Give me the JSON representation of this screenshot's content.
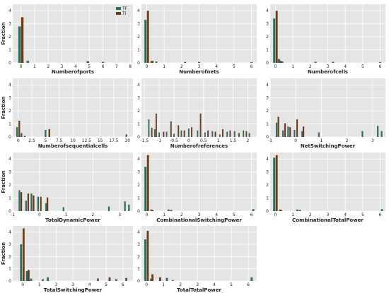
{
  "colors": {
    "TF": "#2f6b5e",
    "TI": "#6b3c1e",
    "background": "#e5e5e5",
    "grid": "#ffffff"
  },
  "legend": {
    "placement": "top-right of first panel",
    "entries": [
      "TF",
      "TI"
    ]
  },
  "chart_data": [
    {
      "type": "bar",
      "title": "",
      "xlabel": "Numberofports",
      "ylabel": "Fraction",
      "xlim": [
        -0.6,
        8.2
      ],
      "ylim": [
        0,
        4.5
      ],
      "xticks": [
        0,
        1,
        2,
        3,
        4,
        5,
        6,
        7,
        8
      ],
      "yticks": [
        0,
        1,
        2,
        3,
        4
      ],
      "bar_width": 0.18,
      "series": [
        {
          "name": "TF",
          "points": [
            [
              -0.1,
              2.8
            ],
            [
              0.5,
              0.15
            ],
            [
              6,
              0.08
            ]
          ]
        },
        {
          "name": "TI",
          "points": [
            [
              0.1,
              3.5
            ],
            [
              4.9,
              0.12
            ]
          ]
        }
      ]
    },
    {
      "type": "bar",
      "title": "",
      "xlabel": "Numberofnets",
      "ylabel": "",
      "xlim": [
        -0.3,
        6.3
      ],
      "ylim": [
        0,
        4.5
      ],
      "xticks": [
        0,
        1,
        2,
        3,
        4,
        5,
        6
      ],
      "yticks": [
        0,
        1,
        2,
        3,
        4
      ],
      "bar_width": 0.12,
      "series": [
        {
          "name": "TF",
          "points": [
            [
              -0.07,
              3.3
            ],
            [
              0.27,
              0.12
            ],
            [
              0.55,
              0.1
            ],
            [
              2.2,
              0.07
            ],
            [
              3.0,
              0.07
            ],
            [
              6.0,
              0.06
            ]
          ]
        },
        {
          "name": "TI",
          "points": [
            [
              0.07,
              4.0
            ],
            [
              0.33,
              0.15
            ]
          ]
        }
      ]
    },
    {
      "type": "bar",
      "title": "",
      "xlabel": "Numberofcells",
      "ylabel": "",
      "xlim": [
        -0.3,
        6.3
      ],
      "ylim": [
        0,
        4.5
      ],
      "xticks": [
        0,
        1,
        2,
        3,
        4,
        5,
        6
      ],
      "yticks": [
        0,
        1,
        2,
        3,
        4
      ],
      "bar_width": 0.12,
      "series": [
        {
          "name": "TF",
          "points": [
            [
              -0.07,
              3.4
            ],
            [
              0.2,
              0.3
            ],
            [
              0.4,
              0.1
            ],
            [
              2.3,
              0.08
            ],
            [
              3.3,
              0.08
            ],
            [
              6.0,
              0.06
            ]
          ]
        },
        {
          "name": "TI",
          "points": [
            [
              0.07,
              4.0
            ],
            [
              0.3,
              0.15
            ]
          ]
        }
      ]
    },
    {
      "type": "bar",
      "title": "",
      "xlabel": "Numberofsequentialcells",
      "ylabel": "Fraction",
      "xlim": [
        -1,
        21
      ],
      "ylim": [
        0,
        4.5
      ],
      "xticks": [
        0.0,
        2.5,
        5.0,
        7.5,
        10.0,
        12.5,
        15.0,
        17.5,
        20.0
      ],
      "yticks": [
        0,
        1,
        2,
        3,
        4
      ],
      "bar_width": 0.3,
      "series": [
        {
          "name": "TF",
          "points": [
            [
              -0.2,
              0.75
            ],
            [
              0.6,
              0.3
            ],
            [
              5.0,
              0.55
            ],
            [
              19.8,
              0.2
            ]
          ]
        },
        {
          "name": "TI",
          "points": [
            [
              0.2,
              1.25
            ],
            [
              1.2,
              0.08
            ],
            [
              5.7,
              0.6
            ]
          ]
        }
      ]
    },
    {
      "type": "bar",
      "title": "",
      "xlabel": "Numberofreferences",
      "ylabel": "",
      "xlim": [
        -1.6,
        2.3
      ],
      "ylim": [
        0,
        4.5
      ],
      "xticks": [
        -1.5,
        -1.0,
        -0.5,
        0.0,
        0.5,
        1.0,
        1.5,
        2.0
      ],
      "yticks": [
        0,
        1,
        2,
        3,
        4
      ],
      "bar_width": 0.045,
      "series": [
        {
          "name": "TF",
          "points": [
            [
              -1.35,
              1.35
            ],
            [
              -1.15,
              0.6
            ],
            [
              -1.0,
              0.35
            ],
            [
              -0.75,
              0.4
            ],
            [
              -0.5,
              0.25
            ],
            [
              -0.25,
              0.5
            ],
            [
              0.0,
              0.65
            ],
            [
              0.3,
              0.5
            ],
            [
              0.55,
              0.35
            ],
            [
              0.8,
              0.45
            ],
            [
              1.05,
              0.2
            ],
            [
              1.3,
              0.4
            ],
            [
              1.55,
              0.45
            ],
            [
              1.85,
              0.5
            ],
            [
              2.05,
              0.3
            ]
          ]
        },
        {
          "name": "TI",
          "points": [
            [
              -1.25,
              0.7
            ],
            [
              -1.1,
              1.8
            ],
            [
              -0.85,
              0.4
            ],
            [
              -0.6,
              1.2
            ],
            [
              -0.35,
              0.9
            ],
            [
              -0.15,
              0.5
            ],
            [
              0.1,
              0.75
            ],
            [
              0.4,
              1.8
            ],
            [
              0.65,
              0.5
            ],
            [
              0.9,
              0.4
            ],
            [
              1.15,
              0.6
            ],
            [
              1.4,
              0.5
            ],
            [
              1.7,
              0.3
            ],
            [
              1.95,
              0.45
            ]
          ]
        }
      ]
    },
    {
      "type": "bar",
      "title": "",
      "xlabel": "NetSwitchingPower",
      "ylabel": "",
      "xlim": [
        -1,
        3.5
      ],
      "ylim": [
        0,
        4.5
      ],
      "xticks": [
        -1,
        0,
        1,
        2,
        3
      ],
      "yticks": [
        0,
        1,
        2,
        3,
        4
      ],
      "bar_width": 0.06,
      "series": [
        {
          "name": "TF",
          "points": [
            [
              -0.75,
              1.1
            ],
            [
              -0.5,
              0.5
            ],
            [
              -0.3,
              0.8
            ],
            [
              -0.05,
              0.55
            ],
            [
              0.25,
              0.45
            ],
            [
              0.9,
              0.35
            ],
            [
              2.6,
              0.45
            ],
            [
              3.2,
              0.85
            ],
            [
              3.35,
              0.45
            ]
          ]
        },
        {
          "name": "TI",
          "points": [
            [
              -0.68,
              1.55
            ],
            [
              -0.42,
              1.05
            ],
            [
              -0.22,
              0.75
            ],
            [
              0.05,
              1.35
            ],
            [
              0.3,
              0.8
            ]
          ]
        }
      ]
    },
    {
      "type": "bar",
      "title": "",
      "xlabel": "TotalDynamicPower",
      "ylabel": "Fraction",
      "xlim": [
        -1,
        3.5
      ],
      "ylim": [
        0,
        4.5
      ],
      "xticks": [
        -1,
        0,
        1,
        2,
        3
      ],
      "yticks": [
        0,
        1,
        2,
        3,
        4
      ],
      "bar_width": 0.06,
      "series": [
        {
          "name": "TF",
          "points": [
            [
              -0.75,
              1.6
            ],
            [
              -0.5,
              0.8
            ],
            [
              -0.3,
              1.35
            ],
            [
              -0.05,
              1.1
            ],
            [
              0.25,
              0.6
            ],
            [
              0.9,
              0.3
            ],
            [
              2.6,
              0.35
            ],
            [
              3.2,
              0.75
            ],
            [
              3.35,
              0.5
            ]
          ]
        },
        {
          "name": "TI",
          "points": [
            [
              -0.68,
              1.45
            ],
            [
              -0.42,
              1.35
            ],
            [
              -0.22,
              1.2
            ],
            [
              0.05,
              1.1
            ],
            [
              0.3,
              1.05
            ]
          ]
        }
      ]
    },
    {
      "type": "bar",
      "title": "",
      "xlabel": "CombinationalSwitchingPower",
      "ylabel": "",
      "xlim": [
        -0.3,
        6.3
      ],
      "ylim": [
        0,
        4.5
      ],
      "xticks": [
        0,
        1,
        2,
        3,
        4,
        5,
        6
      ],
      "yticks": [
        0,
        1,
        2,
        3,
        4
      ],
      "bar_width": 0.12,
      "series": [
        {
          "name": "TF",
          "points": [
            [
              -0.07,
              3.4
            ],
            [
              0.27,
              0.12
            ],
            [
              1.25,
              0.12
            ],
            [
              1.4,
              0.1
            ],
            [
              6.1,
              0.15
            ]
          ]
        },
        {
          "name": "TI",
          "points": [
            [
              0.07,
              4.3
            ],
            [
              0.33,
              0.08
            ]
          ]
        }
      ]
    },
    {
      "type": "bar",
      "title": "",
      "xlabel": "CombinationalTotalPower",
      "ylabel": "",
      "xlim": [
        -0.3,
        6.3
      ],
      "ylim": [
        0,
        4.5
      ],
      "xticks": [
        0,
        1,
        2,
        3,
        4,
        5,
        6
      ],
      "yticks": [
        0,
        1,
        2,
        3,
        4
      ],
      "bar_width": 0.12,
      "series": [
        {
          "name": "TF",
          "points": [
            [
              -0.07,
              4.1
            ],
            [
              0.27,
              0.12
            ],
            [
              1.25,
              0.12
            ],
            [
              1.4,
              0.1
            ],
            [
              6.1,
              0.15
            ]
          ]
        },
        {
          "name": "TI",
          "points": [
            [
              0.07,
              4.3
            ],
            [
              0.33,
              0.08
            ]
          ]
        }
      ]
    },
    {
      "type": "bar",
      "title": "",
      "xlabel": "TotalSwitchingPower",
      "ylabel": "Fraction",
      "xlim": [
        -0.6,
        6.6
      ],
      "ylim": [
        0,
        4.5
      ],
      "xticks": [
        0,
        1,
        2,
        3,
        4,
        5,
        6
      ],
      "yticks": [
        0,
        1,
        2,
        3,
        4
      ],
      "bar_width": 0.12,
      "series": [
        {
          "name": "TF",
          "points": [
            [
              -0.1,
              3.0
            ],
            [
              0.25,
              0.8
            ],
            [
              0.5,
              0.2
            ],
            [
              1.2,
              0.15
            ],
            [
              1.5,
              0.3
            ],
            [
              4.5,
              0.2
            ],
            [
              5.6,
              0.15
            ],
            [
              6.2,
              0.25
            ]
          ]
        },
        {
          "name": "TI",
          "points": [
            [
              0.05,
              4.3
            ],
            [
              0.35,
              0.9
            ],
            [
              5.2,
              0.3
            ]
          ]
        }
      ]
    },
    {
      "type": "bar",
      "title": "",
      "xlabel": "TotalTotalPower",
      "ylabel": "",
      "xlim": [
        -0.3,
        6.5
      ],
      "ylim": [
        0,
        4.5
      ],
      "xticks": [
        0,
        1,
        2,
        3,
        4,
        5,
        6
      ],
      "yticks": [
        0,
        1,
        2,
        3,
        4
      ],
      "bar_width": 0.12,
      "series": [
        {
          "name": "TF",
          "points": [
            [
              -0.07,
              3.4
            ],
            [
              0.27,
              0.2
            ],
            [
              1.2,
              0.25
            ],
            [
              1.55,
              0.08
            ],
            [
              6.2,
              0.3
            ]
          ]
        },
        {
          "name": "TI",
          "points": [
            [
              0.07,
              4.1
            ],
            [
              0.35,
              0.55
            ],
            [
              0.8,
              0.3
            ]
          ]
        }
      ]
    }
  ]
}
